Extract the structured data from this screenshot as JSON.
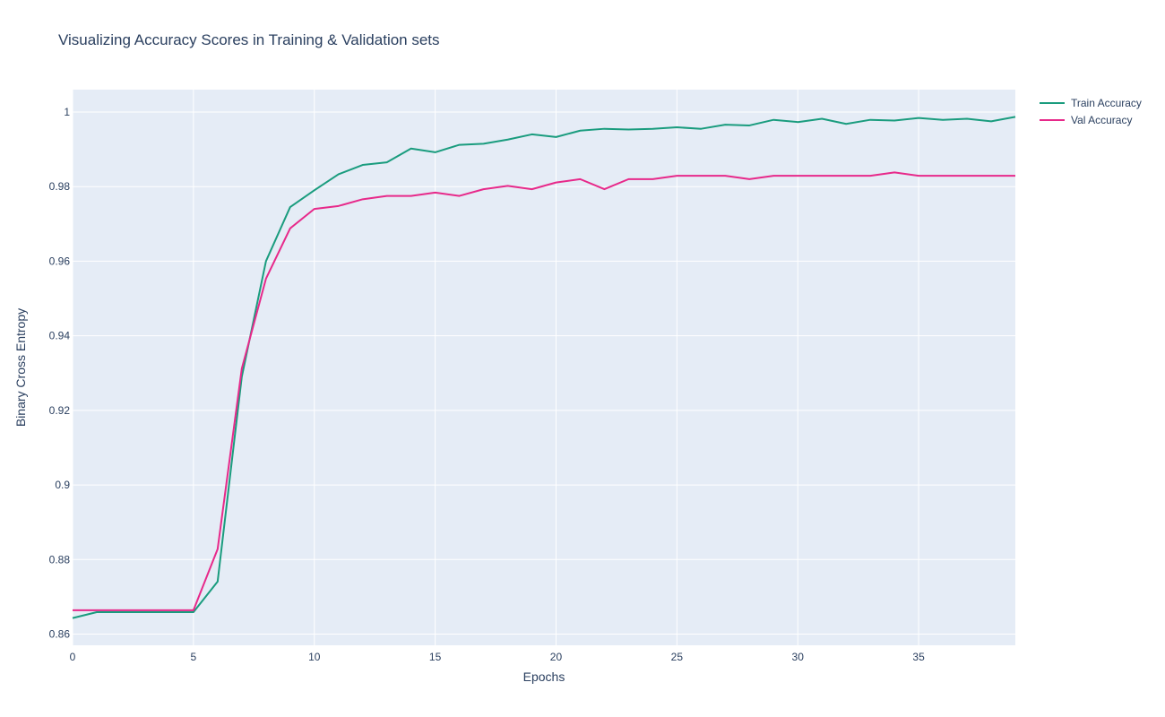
{
  "chart_data": {
    "type": "line",
    "title": "Visualizing Accuracy Scores in Training & Validation sets",
    "xlabel": "Epochs",
    "ylabel": "Binary Cross Entropy",
    "xlim": [
      0,
      39
    ],
    "ylim": [
      0.857,
      1.006
    ],
    "x_ticks": [
      0,
      5,
      10,
      15,
      20,
      25,
      30,
      35
    ],
    "x_tick_labels": [
      "0",
      "5",
      "10",
      "15",
      "20",
      "25",
      "30",
      "35"
    ],
    "y_ticks": [
      0.86,
      0.88,
      0.9,
      0.92,
      0.94,
      0.96,
      0.98,
      1.0
    ],
    "y_tick_labels": [
      "0.86",
      "0.88",
      "0.9",
      "0.92",
      "0.94",
      "0.96",
      "0.98",
      "1"
    ],
    "grid": true,
    "legend_position": "top-right",
    "background_color": "#e5ecf6",
    "x": [
      0,
      1,
      2,
      3,
      4,
      5,
      6,
      7,
      8,
      9,
      10,
      11,
      12,
      13,
      14,
      15,
      16,
      17,
      18,
      19,
      20,
      21,
      22,
      23,
      24,
      25,
      26,
      27,
      28,
      29,
      30,
      31,
      32,
      33,
      34,
      35,
      36,
      37,
      38,
      39
    ],
    "series": [
      {
        "name": "Train Accuracy",
        "color": "#1a9c7e",
        "values": [
          0.8643,
          0.8659,
          0.8659,
          0.8659,
          0.8659,
          0.8659,
          0.8741,
          0.929,
          0.96,
          0.9745,
          0.979,
          0.9833,
          0.9858,
          0.9865,
          0.9902,
          0.9892,
          0.9912,
          0.9915,
          0.9926,
          0.994,
          0.9933,
          0.995,
          0.9955,
          0.9953,
          0.9955,
          0.9959,
          0.9955,
          0.9966,
          0.9964,
          0.9979,
          0.9973,
          0.9982,
          0.9968,
          0.9979,
          0.9977,
          0.9984,
          0.9979,
          0.9982,
          0.9975,
          0.9987
        ]
      },
      {
        "name": "Val Accuracy",
        "color": "#e7298a",
        "values": [
          0.8664,
          0.8664,
          0.8664,
          0.8664,
          0.8664,
          0.8664,
          0.8828,
          0.9312,
          0.9553,
          0.9688,
          0.974,
          0.9748,
          0.9766,
          0.9775,
          0.9775,
          0.9784,
          0.9775,
          0.9793,
          0.9802,
          0.9793,
          0.9811,
          0.982,
          0.9793,
          0.982,
          0.982,
          0.9829,
          0.9829,
          0.9829,
          0.982,
          0.9829,
          0.9829,
          0.9829,
          0.9829,
          0.9829,
          0.9838,
          0.9829,
          0.9829,
          0.9829,
          0.9829,
          0.9829
        ]
      }
    ]
  }
}
